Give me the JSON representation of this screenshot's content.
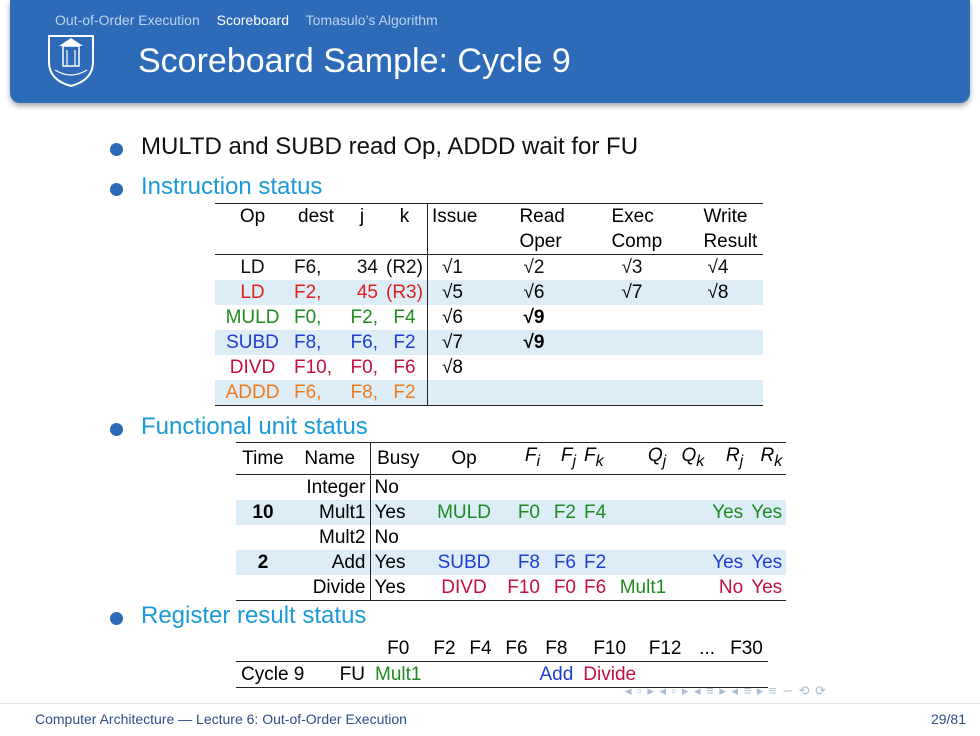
{
  "nav": {
    "items": [
      "Out-of-Order Execution",
      "Scoreboard",
      "Tomasulo’s Algorithm"
    ],
    "active": "Scoreboard"
  },
  "title": "Scoreboard Sample: Cycle 9",
  "bullets": {
    "b1": "MULTD and SUBD read Op, ADDD wait for FU",
    "b2": "Instruction status",
    "b3": "Functional unit status",
    "b4": "Register result status"
  },
  "instruction_status": {
    "headers": {
      "op": "Op",
      "dest": "dest",
      "j": "j",
      "k": "k",
      "issue": "Issue",
      "read1": "Read",
      "read2": "Oper",
      "exec1": "Exec",
      "exec2": "Comp",
      "write1": "Write",
      "write2": "Result"
    },
    "rows": [
      {
        "op": "LD",
        "dest": "F6,",
        "j": "34",
        "k": "(R2)",
        "issue": "√1",
        "read": "√2",
        "exec": "√3",
        "write": "√4"
      },
      {
        "op": "LD",
        "dest": "F2,",
        "j": "45",
        "k": "(R3)",
        "issue": "√5",
        "read": "√6",
        "exec": "√7",
        "write": "√8"
      },
      {
        "op": "MULD",
        "dest": "F0,",
        "j": "F2,",
        "k": "F4",
        "issue": "√6",
        "read": "√9",
        "exec": "",
        "write": ""
      },
      {
        "op": "SUBD",
        "dest": "F8,",
        "j": "F6,",
        "k": "F2",
        "issue": "√7",
        "read": "√9",
        "exec": "",
        "write": ""
      },
      {
        "op": "DIVD",
        "dest": "F10,",
        "j": "F0,",
        "k": "F6",
        "issue": "√8",
        "read": "",
        "exec": "",
        "write": ""
      },
      {
        "op": "ADDD",
        "dest": "F6,",
        "j": "F8,",
        "k": "F2",
        "issue": "",
        "read": "",
        "exec": "",
        "write": ""
      }
    ]
  },
  "functional_unit_status": {
    "headers": {
      "time": "Time",
      "name": "Name",
      "busy": "Busy",
      "op": "Op",
      "fi": "F",
      "fi_sub": "i",
      "fj": "F",
      "fj_sub": "j",
      "fk": "F",
      "fk_sub": "k",
      "qj": "Q",
      "qj_sub": "j",
      "qk": "Q",
      "qk_sub": "k",
      "rj": "R",
      "rj_sub": "j",
      "rk": "R",
      "rk_sub": "k"
    },
    "rows": [
      {
        "time": "",
        "name": "Integer",
        "busy": "No",
        "op": "",
        "fi": "",
        "fj": "",
        "fk": "",
        "qj": "",
        "qk": "",
        "rj": "",
        "rk": ""
      },
      {
        "time": "10",
        "name": "Mult1",
        "busy": "Yes",
        "op": "MULD",
        "fi": "F0",
        "fj": "F2",
        "fk": "F4",
        "qj": "",
        "qk": "",
        "rj": "Yes",
        "rk": "Yes"
      },
      {
        "time": "",
        "name": "Mult2",
        "busy": "No",
        "op": "",
        "fi": "",
        "fj": "",
        "fk": "",
        "qj": "",
        "qk": "",
        "rj": "",
        "rk": ""
      },
      {
        "time": "2",
        "name": "Add",
        "busy": "Yes",
        "op": "SUBD",
        "fi": "F8",
        "fj": "F6",
        "fk": "F2",
        "qj": "",
        "qk": "",
        "rj": "Yes",
        "rk": "Yes"
      },
      {
        "time": "",
        "name": "Divide",
        "busy": "Yes",
        "op": "DIVD",
        "fi": "F10",
        "fj": "F0",
        "fk": "F6",
        "qj": "Mult1",
        "qk": "",
        "rj": "No",
        "rk": "Yes"
      }
    ]
  },
  "register_result_status": {
    "headers": [
      "F0",
      "F2",
      "F4",
      "F6",
      "F8",
      "F10",
      "F12",
      "...",
      "F30"
    ],
    "row_label1": "Cycle 9",
    "row_label2": "FU",
    "values": [
      "Mult1",
      "",
      "",
      "",
      "Add",
      "Divide",
      "",
      "",
      ""
    ]
  },
  "footer": {
    "left": "Computer Architecture — Lecture 6: Out-of-Order Execution",
    "right": "29/81",
    "nav_symbols": "◂ ▫ ▸ ◂ ▫ ▸ ◂ ≡ ▸ ◂ ≡ ▸   ≡   ∽ ⟲ ⟳"
  },
  "colors": {
    "header": "#2d6bb8",
    "accent": "#1a9ad6",
    "highlight_row": "#dcedf8"
  }
}
